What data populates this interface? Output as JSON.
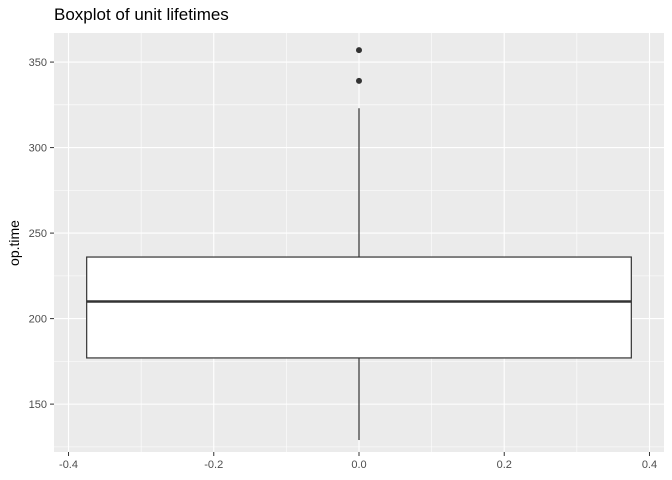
{
  "chart_data": {
    "type": "boxplot",
    "title": "Boxplot of unit lifetimes",
    "xlabel": "",
    "ylabel": "op.time",
    "xlim": [
      -0.42,
      0.42
    ],
    "ylim": [
      122,
      367
    ],
    "x_ticks": [
      -0.4,
      -0.2,
      0.0,
      0.2,
      0.4
    ],
    "x_tick_labels": [
      "-0.4",
      "-0.2",
      "0.0",
      "0.2",
      "0.4"
    ],
    "y_ticks": [
      150,
      200,
      250,
      300,
      350
    ],
    "y_tick_labels": [
      "150",
      "200",
      "250",
      "300",
      "350"
    ],
    "grid": true,
    "box": {
      "x_center": 0.0,
      "width": 0.75,
      "whisker_low": 129,
      "q1": 177,
      "median": 210,
      "q3": 236,
      "whisker_high": 323,
      "outliers": [
        339,
        357
      ]
    },
    "colors": {
      "panel_background": "#ebebeb",
      "grid_major": "#ffffff",
      "box_fill": "#ffffff",
      "box_stroke": "#333333",
      "outlier": "#333333"
    }
  }
}
